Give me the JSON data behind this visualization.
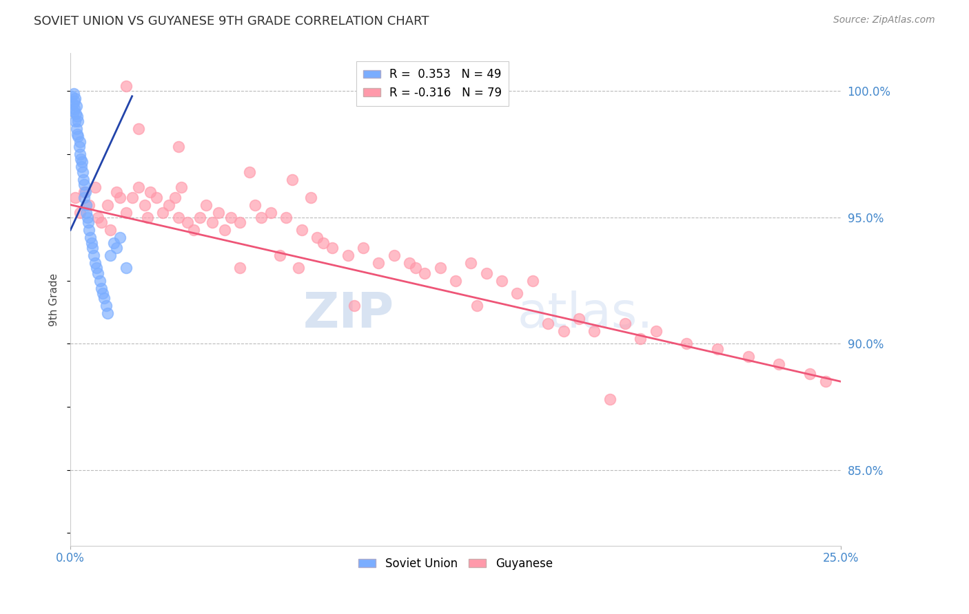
{
  "title": "SOVIET UNION VS GUYANESE 9TH GRADE CORRELATION CHART",
  "source": "Source: ZipAtlas.com",
  "ylabel": "9th Grade",
  "xmin": 0.0,
  "xmax": 25.0,
  "ymin": 82.0,
  "ymax": 101.5,
  "yticks": [
    85.0,
    90.0,
    95.0,
    100.0
  ],
  "ytick_labels": [
    "85.0%",
    "90.0%",
    "95.0%",
    "100.0%"
  ],
  "xtick_positions": [
    0.0,
    25.0
  ],
  "xtick_labels": [
    "0.0%",
    "25.0%"
  ],
  "legend_blue_r": "R =  0.353",
  "legend_blue_n": "N = 49",
  "legend_pink_r": "R = -0.316",
  "legend_pink_n": "N = 79",
  "blue_color": "#7aadff",
  "pink_color": "#ff99aa",
  "blue_line_color": "#2244aa",
  "pink_line_color": "#ee5577",
  "axis_label_color": "#4488cc",
  "title_color": "#333333",
  "watermark_zip": "ZIP",
  "watermark_atlas": "atlas.",
  "blue_dots_x": [
    0.05,
    0.08,
    0.1,
    0.1,
    0.12,
    0.13,
    0.15,
    0.15,
    0.18,
    0.2,
    0.2,
    0.22,
    0.22,
    0.25,
    0.25,
    0.28,
    0.3,
    0.3,
    0.32,
    0.35,
    0.38,
    0.4,
    0.42,
    0.45,
    0.45,
    0.48,
    0.5,
    0.52,
    0.55,
    0.58,
    0.6,
    0.65,
    0.68,
    0.72,
    0.75,
    0.8,
    0.85,
    0.9,
    0.95,
    1.0,
    1.05,
    1.1,
    1.15,
    1.2,
    1.3,
    1.4,
    1.5,
    1.6,
    1.8
  ],
  "blue_dots_y": [
    99.8,
    99.5,
    99.9,
    99.2,
    99.6,
    99.3,
    99.7,
    98.8,
    99.1,
    99.4,
    98.5,
    99.0,
    98.3,
    98.8,
    98.2,
    97.8,
    98.0,
    97.5,
    97.3,
    97.0,
    97.2,
    96.8,
    96.5,
    96.3,
    95.8,
    96.0,
    95.5,
    95.2,
    95.0,
    94.8,
    94.5,
    94.2,
    94.0,
    93.8,
    93.5,
    93.2,
    93.0,
    92.8,
    92.5,
    92.2,
    92.0,
    91.8,
    91.5,
    91.2,
    93.5,
    94.0,
    93.8,
    94.2,
    93.0
  ],
  "pink_dots_x": [
    0.15,
    0.3,
    0.45,
    0.6,
    0.8,
    0.9,
    1.0,
    1.2,
    1.3,
    1.5,
    1.6,
    1.8,
    2.0,
    2.2,
    2.4,
    2.5,
    2.6,
    2.8,
    3.0,
    3.2,
    3.4,
    3.5,
    3.6,
    3.8,
    4.0,
    4.2,
    4.4,
    4.6,
    4.8,
    5.0,
    5.2,
    5.5,
    5.8,
    6.0,
    6.2,
    6.5,
    7.0,
    7.2,
    7.5,
    7.8,
    8.0,
    8.5,
    9.0,
    9.5,
    10.0,
    10.5,
    11.0,
    11.5,
    12.0,
    12.5,
    13.0,
    13.5,
    14.0,
    14.5,
    15.0,
    15.5,
    16.0,
    16.5,
    17.0,
    18.0,
    18.5,
    19.0,
    20.0,
    21.0,
    22.0,
    23.0,
    24.0,
    24.5,
    6.8,
    7.4,
    8.2,
    9.2,
    11.2,
    13.2,
    2.2,
    1.8,
    3.5,
    5.5,
    17.5
  ],
  "pink_dots_y": [
    95.8,
    95.2,
    96.0,
    95.5,
    96.2,
    95.0,
    94.8,
    95.5,
    94.5,
    96.0,
    95.8,
    95.2,
    95.8,
    96.2,
    95.5,
    95.0,
    96.0,
    95.8,
    95.2,
    95.5,
    95.8,
    95.0,
    96.2,
    94.8,
    94.5,
    95.0,
    95.5,
    94.8,
    95.2,
    94.5,
    95.0,
    94.8,
    96.8,
    95.5,
    95.0,
    95.2,
    95.0,
    96.5,
    94.5,
    95.8,
    94.2,
    93.8,
    93.5,
    93.8,
    93.2,
    93.5,
    93.2,
    92.8,
    93.0,
    92.5,
    93.2,
    92.8,
    92.5,
    92.0,
    92.5,
    90.8,
    90.5,
    91.0,
    90.5,
    90.8,
    90.2,
    90.5,
    90.0,
    89.8,
    89.5,
    89.2,
    88.8,
    88.5,
    93.5,
    93.0,
    94.0,
    91.5,
    93.0,
    91.5,
    98.5,
    100.2,
    97.8,
    93.0,
    87.8
  ],
  "blue_line_x": [
    0.0,
    2.0
  ],
  "blue_line_y": [
    94.5,
    99.8
  ],
  "pink_line_x": [
    0.0,
    25.0
  ],
  "pink_line_y": [
    95.5,
    88.5
  ]
}
